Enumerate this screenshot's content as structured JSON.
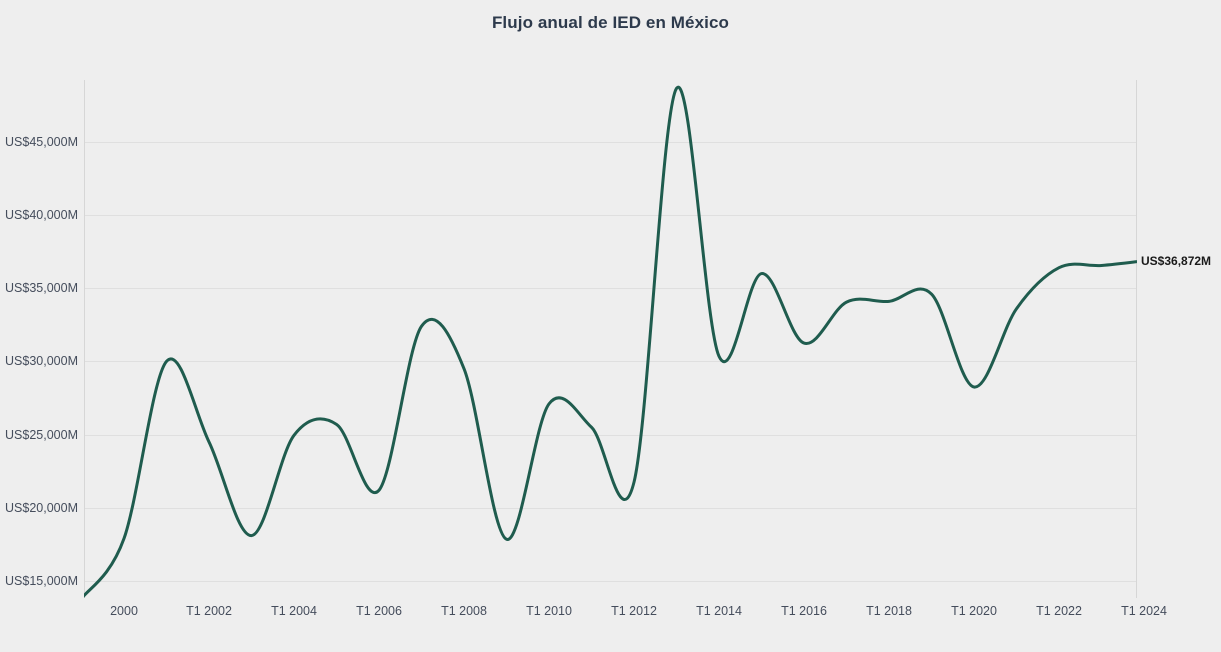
{
  "title": "Flujo anual de IED en México",
  "colors": {
    "background": "#eeeeee",
    "gridline": "#dfdfdf",
    "axis_line": "#d6d6d6",
    "line": "#1f5c4e",
    "title_text": "#2d3a4c",
    "tick_text": "#454d5c",
    "end_label_text": "#1a1a1a"
  },
  "chart_data": {
    "type": "line",
    "title": "Flujo anual de IED en México",
    "series_name": "Flujo anual de IED en México (US$ millones)",
    "x": [
      "T1 1999",
      "T1 2000",
      "T1 2001",
      "T1 2002",
      "T1 2003",
      "T1 2004",
      "T1 2005",
      "T1 2006",
      "T1 2007",
      "T1 2008",
      "T1 2009",
      "T1 2010",
      "T1 2011",
      "T1 2012",
      "T1 2013",
      "T1 2014",
      "T1 2015",
      "T1 2016",
      "T1 2017",
      "T1 2018",
      "T1 2019",
      "T1 2020",
      "T1 2021",
      "T1 2022",
      "T1 2023",
      "T1 2024"
    ],
    "values": [
      13800,
      17900,
      30000,
      24500,
      18100,
      24950,
      25700,
      21200,
      32400,
      29500,
      17850,
      27100,
      25500,
      21750,
      48650,
      30350,
      36000,
      31250,
      34050,
      34100,
      34600,
      28250,
      33600,
      36400,
      36550,
      36872
    ],
    "y_tick_values": [
      15000,
      20000,
      25000,
      30000,
      35000,
      40000,
      45000
    ],
    "y_tick_labels": [
      "US$15,000M",
      "US$20,000M",
      "US$25,000M",
      "US$30,000M",
      "US$35,000M",
      "US$40,000M",
      "US$45,000M"
    ],
    "x_tick_years": [
      2000,
      2002,
      2004,
      2006,
      2008,
      2010,
      2012,
      2014,
      2016,
      2018,
      2020,
      2022,
      2024
    ],
    "x_tick_labels": [
      "2000",
      "T1 2002",
      "T1 2004",
      "T1 2006",
      "T1 2008",
      "T1 2010",
      "T1 2012",
      "T1 2014",
      "T1 2016",
      "T1 2018",
      "T1 2020",
      "T1 2022",
      "T1 2024"
    ],
    "end_label": "US$36,872M",
    "last_value": 36872,
    "ylim": [
      13600,
      49500
    ],
    "grid": "horizontal",
    "legend": "none"
  }
}
